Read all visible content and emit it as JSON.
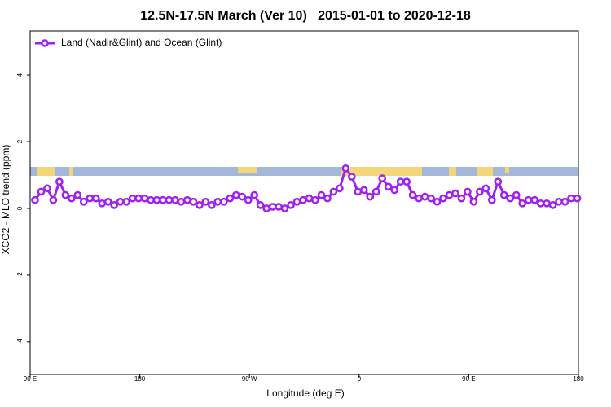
{
  "chart_data": {
    "type": "line",
    "title": "12.5N-17.5N March (Ver 10)   2015-01-01 to 2020-12-18",
    "xlabel": "Longitude (deg E)",
    "ylabel": "XCO2 - MLO trend (ppm)",
    "xlim": [
      90,
      540
    ],
    "ylim": [
      -4.98,
      5.32
    ],
    "xticks": [
      {
        "value": 90,
        "label": "90 E"
      },
      180,
      {
        "value": 270,
        "label": "90 W"
      },
      {
        "value": 360,
        "label": "0"
      },
      {
        "value": 450,
        "label": "90 E"
      },
      {
        "value": 540,
        "label": "180"
      }
    ],
    "yticks": [
      -4,
      -2,
      0,
      2,
      4
    ],
    "legend": "upper left",
    "x": [
      94,
      99,
      104,
      109,
      114,
      119,
      124,
      129,
      134,
      139,
      144,
      149,
      154,
      159,
      164,
      169,
      174,
      179,
      184,
      189,
      194,
      199,
      204,
      209,
      214,
      219,
      224,
      229,
      234,
      239,
      244,
      249,
      254,
      259,
      264,
      269,
      274,
      279,
      284,
      289,
      294,
      299,
      304,
      309,
      314,
      319,
      324,
      329,
      334,
      339,
      344,
      349,
      354,
      359,
      364,
      369,
      374,
      379,
      384,
      389,
      394,
      399,
      404,
      409,
      414,
      419,
      424,
      429,
      434,
      439,
      444,
      449,
      454,
      459,
      464,
      469,
      474,
      479,
      484,
      489,
      494,
      499,
      504,
      509,
      514,
      519,
      524,
      529,
      534,
      539
    ],
    "series": [
      {
        "name": "Land (Nadir&Glint) and Ocean (Glint)",
        "color": "#a020f0",
        "values": [
          0.25,
          0.5,
          0.6,
          0.25,
          0.8,
          0.4,
          0.3,
          0.4,
          0.2,
          0.3,
          0.3,
          0.15,
          0.2,
          0.1,
          0.2,
          0.2,
          0.3,
          0.3,
          0.3,
          0.25,
          0.25,
          0.25,
          0.25,
          0.25,
          0.2,
          0.25,
          0.2,
          0.1,
          0.2,
          0.1,
          0.2,
          0.2,
          0.3,
          0.4,
          0.35,
          0.25,
          0.4,
          0.1,
          0.0,
          0.05,
          0.05,
          0.0,
          0.1,
          0.2,
          0.25,
          0.3,
          0.25,
          0.4,
          0.3,
          0.5,
          0.6,
          1.2,
          0.95,
          0.5,
          0.55,
          0.35,
          0.5,
          0.9,
          0.65,
          0.55,
          0.8,
          0.8,
          0.4,
          0.3,
          0.35,
          0.3,
          0.2,
          0.3,
          0.4,
          0.45,
          0.3,
          0.5,
          0.2,
          0.5,
          0.6,
          0.25,
          0.8,
          0.4,
          0.3,
          0.4,
          0.15,
          0.25,
          0.25,
          0.15,
          0.15,
          0.1,
          0.2,
          0.2,
          0.3,
          0.3
        ]
      }
    ]
  }
}
